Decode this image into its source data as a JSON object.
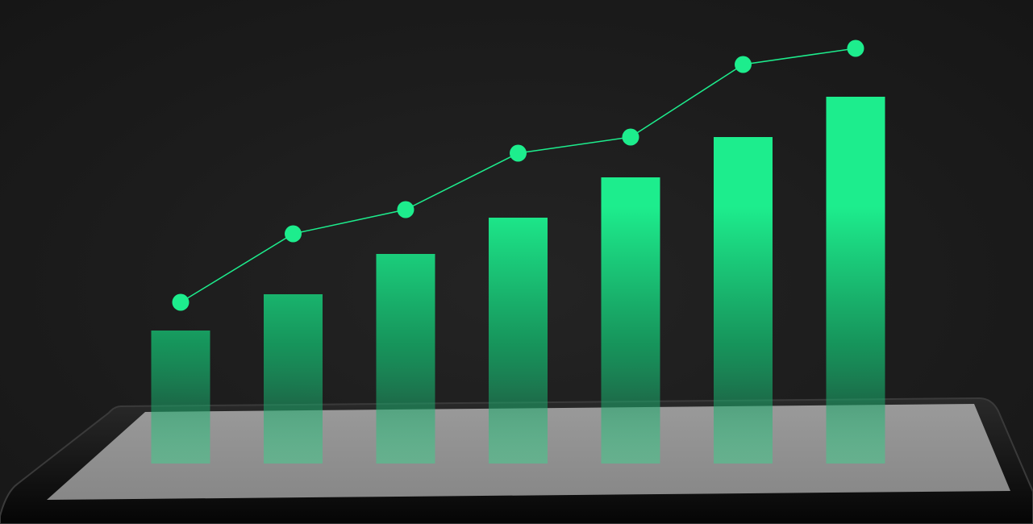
{
  "scene": {
    "background_color": "#1c1c1c",
    "accent_color": "#1ded8d",
    "tablet_bezel_color": "#0b0b0b",
    "tablet_screen_color": "#8f8f8f"
  },
  "chart_data": {
    "type": "bar",
    "categories": [
      "",
      "",
      "",
      "",
      "",
      "",
      ""
    ],
    "series": [
      {
        "type": "bar",
        "values": [
          33,
          42,
          52,
          61,
          71,
          81,
          91
        ]
      },
      {
        "type": "line",
        "values": [
          40,
          57,
          63,
          77,
          81,
          99,
          103
        ]
      }
    ],
    "ylim": [
      0,
      110
    ],
    "grid": false,
    "legend": "none"
  }
}
